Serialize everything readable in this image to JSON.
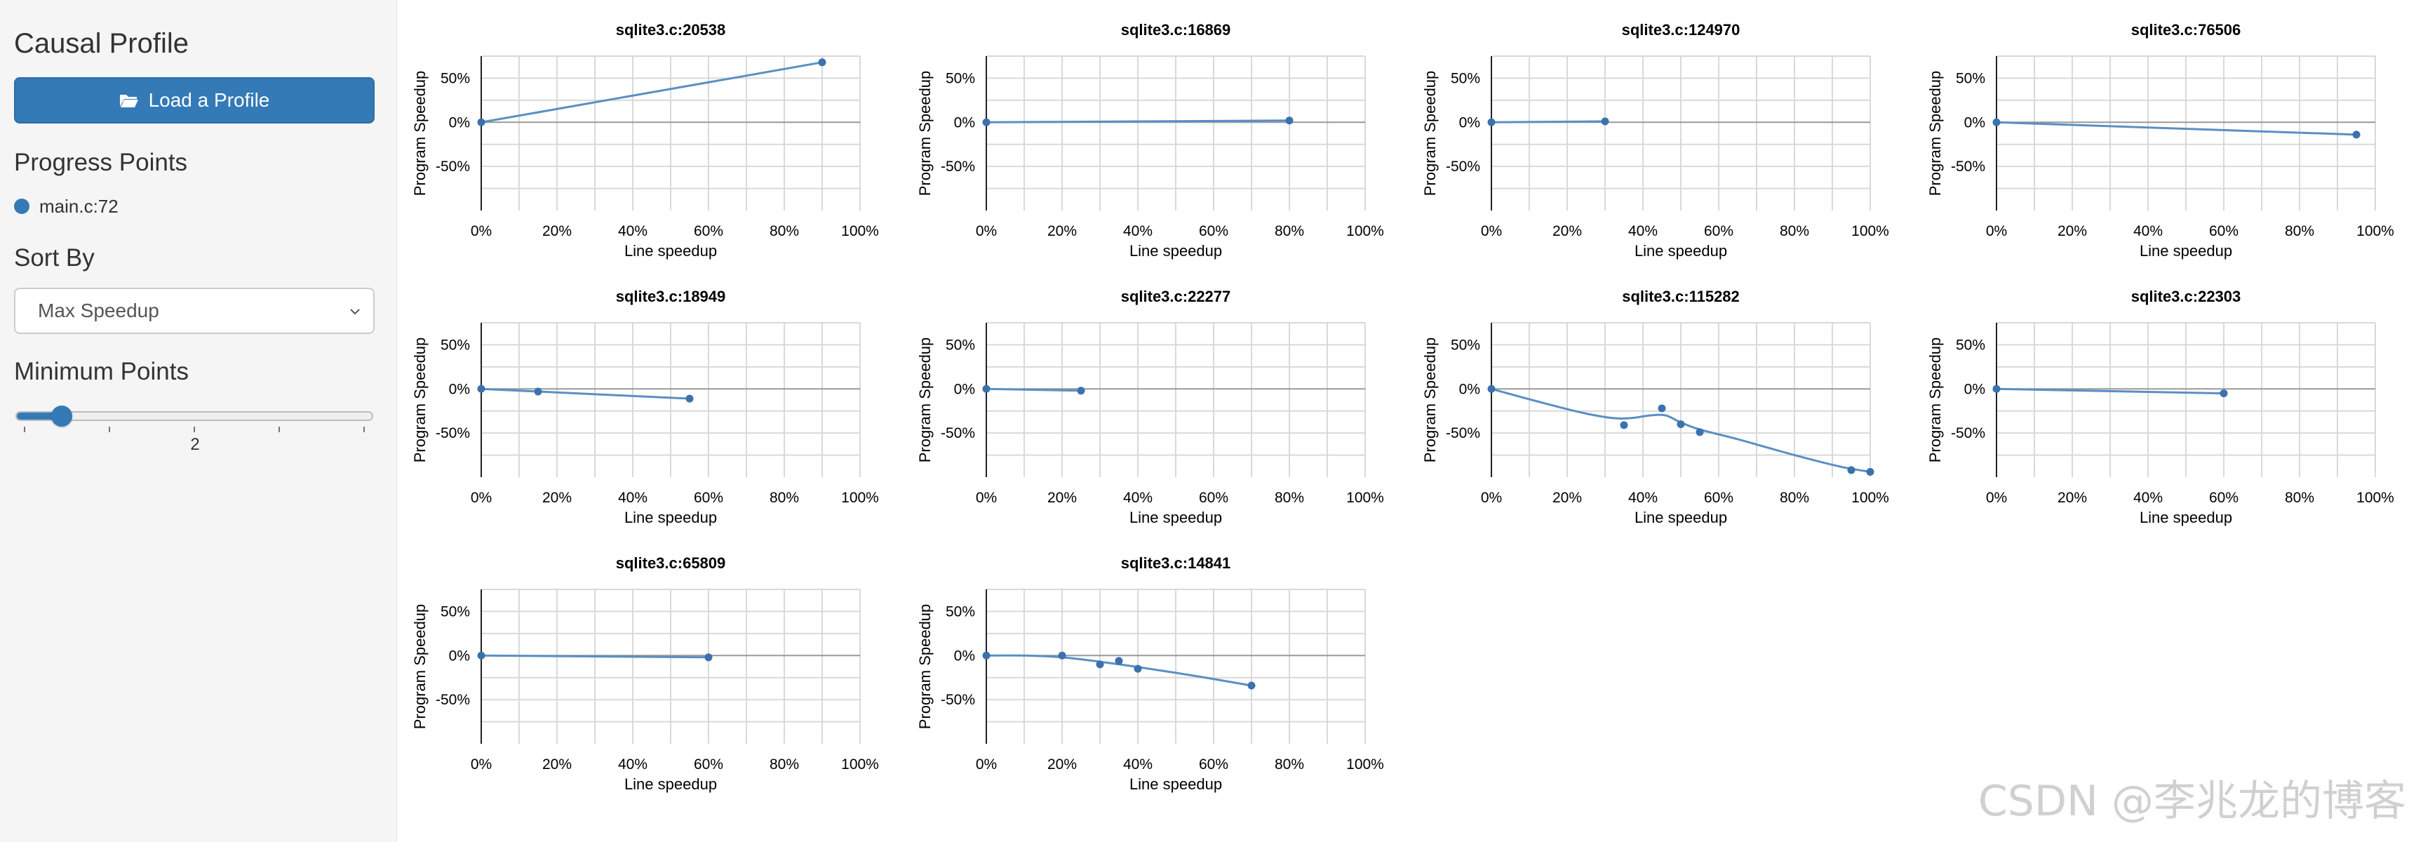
{
  "sidebar": {
    "title": "Causal Profile",
    "load_button": {
      "label": "Load a Profile",
      "icon": "folder-open-icon"
    },
    "progress_points": {
      "heading": "Progress Points",
      "items": [
        {
          "label": "main.c:72",
          "color": "#337ab7"
        }
      ]
    },
    "sort_by": {
      "heading": "Sort By",
      "selected": "Max Speedup"
    },
    "min_points": {
      "heading": "Minimum Points",
      "value": "2",
      "min": 1,
      "max": 10,
      "current": 2
    }
  },
  "colors": {
    "accent": "#337ab7",
    "line": "#5b8fc3",
    "point": "#3b72ad",
    "grid": "#d9d9d9",
    "zero_line": "#999999",
    "sidebar_bg": "#f5f5f5"
  },
  "watermark": "CSDN @李兆龙的博客",
  "chart_data": [
    {
      "type": "line",
      "title": "sqlite3.c:20538",
      "xlabel": "Line speedup",
      "ylabel": "Program Speedup",
      "xlim": [
        0,
        100
      ],
      "ylim": [
        -100,
        75
      ],
      "x_ticks": [
        "0%",
        "20%",
        "40%",
        "60%",
        "80%",
        "100%"
      ],
      "y_ticks": [
        "50%",
        "0%",
        "-50%"
      ],
      "grid": true,
      "points": [
        {
          "x": 0,
          "y": 0
        },
        {
          "x": 90,
          "y": 68
        }
      ],
      "curve": [
        {
          "x": 0,
          "y": 0
        },
        {
          "x": 90,
          "y": 68
        }
      ]
    },
    {
      "type": "line",
      "title": "sqlite3.c:16869",
      "xlabel": "Line speedup",
      "ylabel": "Program Speedup",
      "xlim": [
        0,
        100
      ],
      "ylim": [
        -100,
        75
      ],
      "x_ticks": [
        "0%",
        "20%",
        "40%",
        "60%",
        "80%",
        "100%"
      ],
      "y_ticks": [
        "50%",
        "0%",
        "-50%"
      ],
      "grid": true,
      "points": [
        {
          "x": 0,
          "y": 0
        },
        {
          "x": 80,
          "y": 2
        }
      ],
      "curve": [
        {
          "x": 0,
          "y": 0
        },
        {
          "x": 80,
          "y": 2
        }
      ]
    },
    {
      "type": "line",
      "title": "sqlite3.c:124970",
      "xlabel": "Line speedup",
      "ylabel": "Program Speedup",
      "xlim": [
        0,
        100
      ],
      "ylim": [
        -100,
        75
      ],
      "x_ticks": [
        "0%",
        "20%",
        "40%",
        "60%",
        "80%",
        "100%"
      ],
      "y_ticks": [
        "50%",
        "0%",
        "-50%"
      ],
      "grid": true,
      "points": [
        {
          "x": 0,
          "y": 0
        },
        {
          "x": 30,
          "y": 1
        }
      ],
      "curve": [
        {
          "x": 0,
          "y": 0
        },
        {
          "x": 30,
          "y": 1
        }
      ]
    },
    {
      "type": "line",
      "title": "sqlite3.c:76506",
      "xlabel": "Line speedup",
      "ylabel": "Program Speedup",
      "xlim": [
        0,
        100
      ],
      "ylim": [
        -100,
        75
      ],
      "x_ticks": [
        "0%",
        "20%",
        "40%",
        "60%",
        "80%",
        "100%"
      ],
      "y_ticks": [
        "50%",
        "0%",
        "-50%"
      ],
      "grid": true,
      "points": [
        {
          "x": 0,
          "y": 0
        },
        {
          "x": 95,
          "y": -14
        }
      ],
      "curve": [
        {
          "x": 0,
          "y": 0
        },
        {
          "x": 95,
          "y": -14
        }
      ]
    },
    {
      "type": "line",
      "title": "sqlite3.c:18949",
      "xlabel": "Line speedup",
      "ylabel": "Program Speedup",
      "xlim": [
        0,
        100
      ],
      "ylim": [
        -100,
        75
      ],
      "x_ticks": [
        "0%",
        "20%",
        "40%",
        "60%",
        "80%",
        "100%"
      ],
      "y_ticks": [
        "50%",
        "0%",
        "-50%"
      ],
      "grid": true,
      "points": [
        {
          "x": 0,
          "y": 0
        },
        {
          "x": 15,
          "y": -3
        },
        {
          "x": 55,
          "y": -11
        }
      ],
      "curve": [
        {
          "x": 0,
          "y": 0
        },
        {
          "x": 15,
          "y": -3
        },
        {
          "x": 55,
          "y": -11
        }
      ]
    },
    {
      "type": "line",
      "title": "sqlite3.c:22277",
      "xlabel": "Line speedup",
      "ylabel": "Program Speedup",
      "xlim": [
        0,
        100
      ],
      "ylim": [
        -100,
        75
      ],
      "x_ticks": [
        "0%",
        "20%",
        "40%",
        "60%",
        "80%",
        "100%"
      ],
      "y_ticks": [
        "50%",
        "0%",
        "-50%"
      ],
      "grid": true,
      "points": [
        {
          "x": 0,
          "y": 0
        },
        {
          "x": 25,
          "y": -2
        }
      ],
      "curve": [
        {
          "x": 0,
          "y": 0
        },
        {
          "x": 25,
          "y": -2
        }
      ]
    },
    {
      "type": "line",
      "title": "sqlite3.c:115282",
      "xlabel": "Line speedup",
      "ylabel": "Program Speedup",
      "xlim": [
        0,
        100
      ],
      "ylim": [
        -100,
        75
      ],
      "x_ticks": [
        "0%",
        "20%",
        "40%",
        "60%",
        "80%",
        "100%"
      ],
      "y_ticks": [
        "50%",
        "0%",
        "-50%"
      ],
      "grid": true,
      "points": [
        {
          "x": 0,
          "y": 0
        },
        {
          "x": 35,
          "y": -41
        },
        {
          "x": 45,
          "y": -22
        },
        {
          "x": 50,
          "y": -40
        },
        {
          "x": 55,
          "y": -49
        },
        {
          "x": 95,
          "y": -92
        },
        {
          "x": 100,
          "y": -94
        }
      ],
      "curve": [
        {
          "x": 0,
          "y": 0
        },
        {
          "x": 12,
          "y": -14
        },
        {
          "x": 24,
          "y": -27
        },
        {
          "x": 32,
          "y": -33
        },
        {
          "x": 37,
          "y": -33
        },
        {
          "x": 42,
          "y": -30
        },
        {
          "x": 46,
          "y": -30
        },
        {
          "x": 50,
          "y": -38
        },
        {
          "x": 55,
          "y": -46
        },
        {
          "x": 65,
          "y": -57
        },
        {
          "x": 80,
          "y": -75
        },
        {
          "x": 92,
          "y": -88
        },
        {
          "x": 100,
          "y": -94
        }
      ]
    },
    {
      "type": "line",
      "title": "sqlite3.c:22303",
      "xlabel": "Line speedup",
      "ylabel": "Program Speedup",
      "xlim": [
        0,
        100
      ],
      "ylim": [
        -100,
        75
      ],
      "x_ticks": [
        "0%",
        "20%",
        "40%",
        "60%",
        "80%",
        "100%"
      ],
      "y_ticks": [
        "50%",
        "0%",
        "-50%"
      ],
      "grid": true,
      "points": [
        {
          "x": 0,
          "y": 0
        },
        {
          "x": 60,
          "y": -5
        }
      ],
      "curve": [
        {
          "x": 0,
          "y": 0
        },
        {
          "x": 60,
          "y": -5
        }
      ]
    },
    {
      "type": "line",
      "title": "sqlite3.c:65809",
      "xlabel": "Line speedup",
      "ylabel": "Program Speedup",
      "xlim": [
        0,
        100
      ],
      "ylim": [
        -100,
        75
      ],
      "x_ticks": [
        "0%",
        "20%",
        "40%",
        "60%",
        "80%",
        "100%"
      ],
      "y_ticks": [
        "50%",
        "0%",
        "-50%"
      ],
      "grid": true,
      "points": [
        {
          "x": 0,
          "y": 0
        },
        {
          "x": 60,
          "y": -2
        }
      ],
      "curve": [
        {
          "x": 0,
          "y": 0
        },
        {
          "x": 60,
          "y": -2
        }
      ]
    },
    {
      "type": "line",
      "title": "sqlite3.c:14841",
      "xlabel": "Line speedup",
      "ylabel": "Program Speedup",
      "xlim": [
        0,
        100
      ],
      "ylim": [
        -100,
        75
      ],
      "x_ticks": [
        "0%",
        "20%",
        "40%",
        "60%",
        "80%",
        "100%"
      ],
      "y_ticks": [
        "50%",
        "0%",
        "-50%"
      ],
      "grid": true,
      "points": [
        {
          "x": 0,
          "y": 0
        },
        {
          "x": 20,
          "y": 0
        },
        {
          "x": 30,
          "y": -10
        },
        {
          "x": 35,
          "y": -6
        },
        {
          "x": 40,
          "y": -15
        },
        {
          "x": 70,
          "y": -34
        }
      ],
      "curve": [
        {
          "x": 0,
          "y": 0
        },
        {
          "x": 10,
          "y": 0
        },
        {
          "x": 20,
          "y": -2
        },
        {
          "x": 30,
          "y": -7
        },
        {
          "x": 40,
          "y": -13
        },
        {
          "x": 55,
          "y": -23
        },
        {
          "x": 70,
          "y": -34
        }
      ]
    }
  ]
}
